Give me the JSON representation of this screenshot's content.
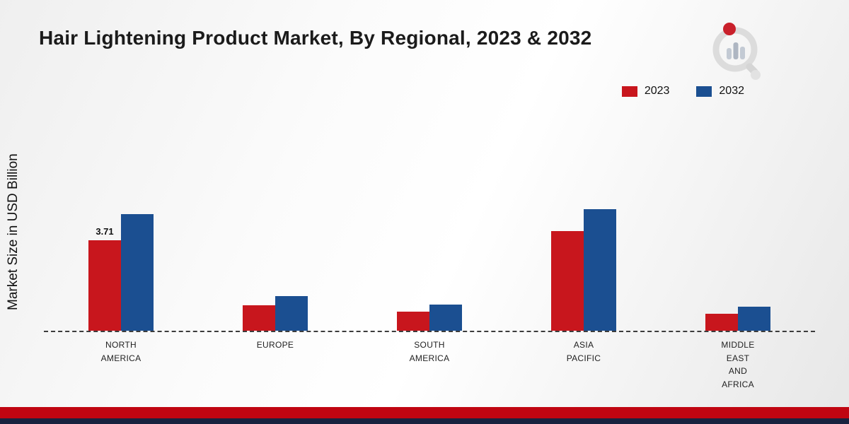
{
  "title": "Hair Lightening Product Market, By Regional, 2023 & 2032",
  "ylabel": "Market Size in USD Billion",
  "legend": [
    {
      "label": "2023",
      "color": "#c8161d"
    },
    {
      "label": "2032",
      "color": "#1b4f91"
    }
  ],
  "colors": {
    "strip_red": "#c00511",
    "strip_navy": "#18233f",
    "baseline": "#3c3c3c"
  },
  "logo": {
    "name": "brand-logo"
  },
  "chart_data": {
    "type": "bar",
    "categories": [
      "NORTH\nAMERICA",
      "EUROPE",
      "SOUTH\nAMERICA",
      "ASIA\nPACIFIC",
      "MIDDLE\nEAST\nAND\nAFRICA"
    ],
    "series": [
      {
        "name": "2023",
        "color": "#c8161d",
        "values": [
          3.71,
          1.05,
          0.78,
          4.1,
          0.7
        ],
        "value_labels": [
          "3.71",
          "",
          "",
          "",
          ""
        ]
      },
      {
        "name": "2032",
        "color": "#1b4f91",
        "values": [
          4.8,
          1.42,
          1.07,
          5.0,
          0.98
        ],
        "value_labels": [
          "",
          "",
          "",
          "",
          ""
        ]
      }
    ],
    "title": "Hair Lightening Product Market, By Regional, 2023 & 2032",
    "xlabel": "",
    "ylabel": "Market Size in USD Billion",
    "ylim": [
      0,
      5.5
    ],
    "grid": false,
    "baseline_style": "dashed",
    "legend_position": "top-right"
  }
}
